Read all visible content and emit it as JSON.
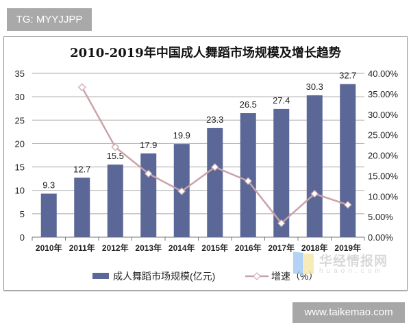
{
  "watermarks": {
    "tg": "TG: MYYJJPP",
    "site": "www.taikemao.com",
    "logo_cn": "华经情报网",
    "logo_en": "huaon.com"
  },
  "chart_data": {
    "type": "bar+line",
    "title": "2010-2019年中国成人舞蹈市场规模及增长趋势",
    "categories": [
      "2010年",
      "2011年",
      "2012年",
      "2013年",
      "2014年",
      "2015年",
      "2016年",
      "2017年",
      "2018年",
      "2019年"
    ],
    "series": [
      {
        "name": "成人舞蹈市场规模(亿元)",
        "type": "bar",
        "axis": "left",
        "color": "#5b6796",
        "values": [
          9.3,
          12.7,
          15.5,
          17.9,
          19.9,
          23.3,
          26.5,
          27.4,
          30.3,
          32.7
        ],
        "labels": [
          "9.3",
          "12.7",
          "15.5",
          "17.9",
          "19.9",
          "23.3",
          "26.5",
          "27.4",
          "30.3",
          "32.7"
        ]
      },
      {
        "name": "增速（%）",
        "type": "line",
        "axis": "right",
        "color": "#c9a3a8",
        "values": [
          null,
          36.6,
          22.0,
          15.5,
          11.2,
          17.1,
          13.7,
          3.4,
          10.6,
          7.9
        ]
      }
    ],
    "left_axis": {
      "range": [
        0,
        35
      ],
      "ticks": [
        "0",
        "5",
        "10",
        "15",
        "20",
        "25",
        "30",
        "35"
      ]
    },
    "right_axis": {
      "range": [
        0,
        40
      ],
      "ticks": [
        "0.00%",
        "5.00%",
        "10.00%",
        "15.00%",
        "20.00%",
        "25.00%",
        "30.00%",
        "35.00%",
        "40.00%"
      ]
    },
    "grid": true,
    "legend": "bottom"
  }
}
